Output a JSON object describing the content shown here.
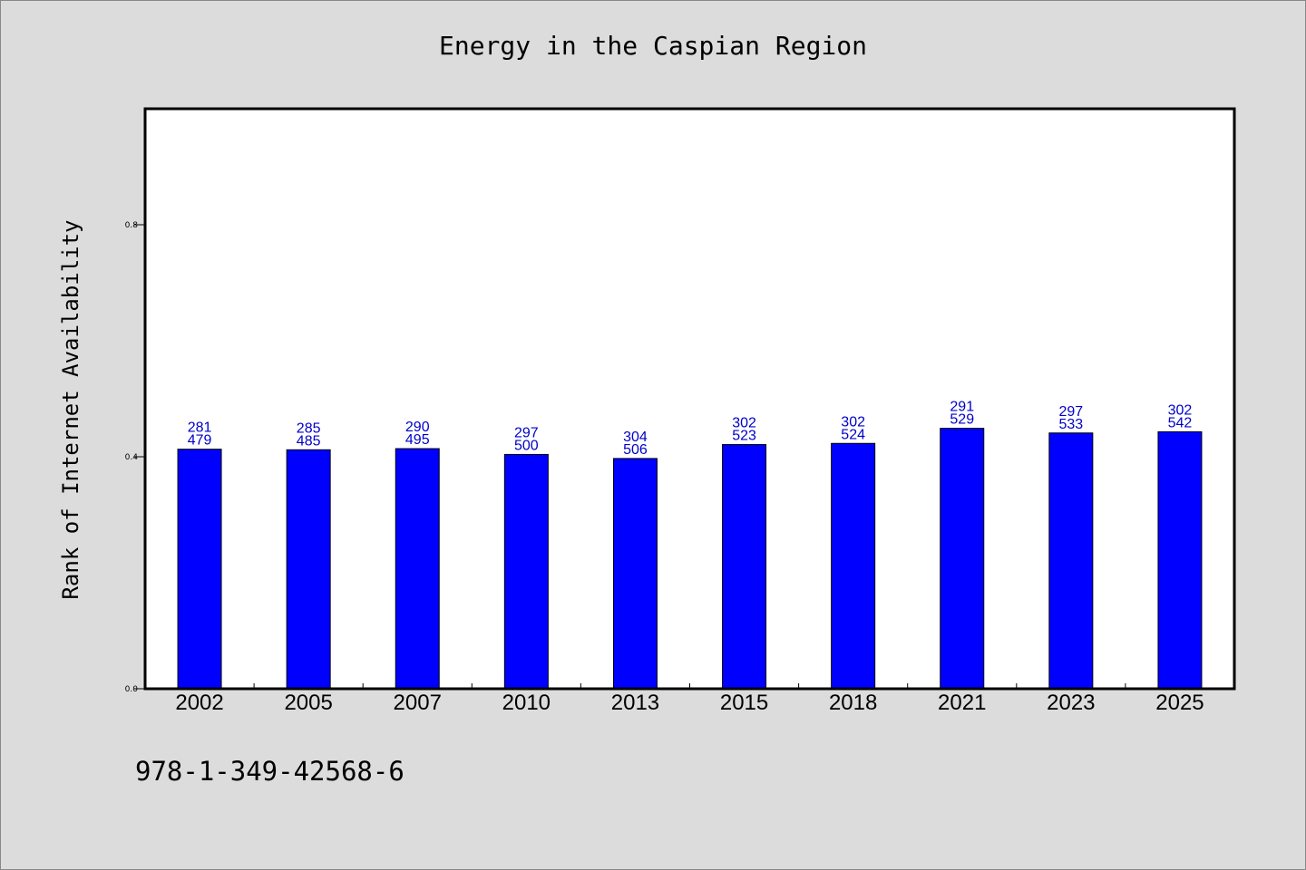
{
  "chart_data": {
    "type": "bar",
    "title": "Energy in the Caspian Region",
    "xlabel": "",
    "ylabel": "Rank of Internet Availability",
    "categories": [
      "2002",
      "2005",
      "2007",
      "2010",
      "2013",
      "2015",
      "2018",
      "2021",
      "2023",
      "2025"
    ],
    "series": [
      {
        "values": [
          0.413,
          0.412,
          0.414,
          0.404,
          0.397,
          0.421,
          0.423,
          0.449,
          0.441,
          0.443
        ],
        "label_top": [
          "281",
          "285",
          "290",
          "297",
          "304",
          "302",
          "302",
          "291",
          "297",
          "302"
        ],
        "label_bottom": [
          "479",
          "485",
          "495",
          "500",
          "506",
          "523",
          "524",
          "529",
          "533",
          "542"
        ]
      }
    ],
    "ylim": [
      0.0,
      1.0
    ],
    "yticks": [
      "0.0",
      "0.4",
      "0.8"
    ],
    "bar_color": "#0000ff",
    "label_color": "#0000c8",
    "background": "#dcdcdc",
    "grid": false
  },
  "footer": {
    "isbn": "978-1-349-42568-6"
  }
}
